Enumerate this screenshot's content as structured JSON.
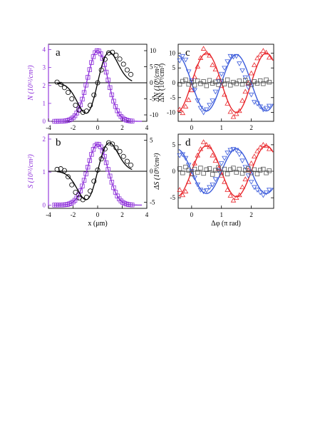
{
  "colors": {
    "purple": "#8B2BD9",
    "black": "#000000",
    "red": "#E8262B",
    "blue": "#3B5BDB",
    "gray": "#555555"
  },
  "chart_data": [
    {
      "panel": "a",
      "type": "scatter",
      "panel_label": "a",
      "xlim": [
        -4,
        4
      ],
      "x_ticks": [
        "-4",
        "-2",
        "0",
        "2",
        "4"
      ],
      "ylim_left": [
        0,
        4.3
      ],
      "y_ticks_left": [
        "0",
        "1",
        "2",
        "3",
        "4"
      ],
      "ylabel_left": "N (10¹²/cm²)",
      "ylim_right": [
        -12,
        12
      ],
      "y_ticks_right": [
        "-10",
        "-5",
        "0",
        "5",
        "10"
      ],
      "ylabel_right": "ΔN (10⁹/cm²)",
      "series": [
        {
          "axis": "left",
          "color": "purple",
          "marker": "square-line",
          "gauss": {
            "amp": 3.95,
            "center": 0.0,
            "sigma": 0.82
          }
        },
        {
          "axis": "right",
          "color": "black",
          "marker": "circle-line",
          "deriv": {
            "amp": 9.5,
            "center": 0.0,
            "sigma": 0.95
          },
          "points": [
            [
              -3.3,
              0.2
            ],
            [
              -3.0,
              -0.5
            ],
            [
              -2.7,
              -1.5
            ],
            [
              -2.4,
              -3.0
            ],
            [
              -2.1,
              -5.0
            ],
            [
              -1.8,
              -7.0
            ],
            [
              -1.5,
              -8.5
            ],
            [
              -1.2,
              -9.2
            ],
            [
              -0.9,
              -8.8
            ],
            [
              -0.6,
              -7.0
            ],
            [
              -0.3,
              -3.8
            ],
            [
              0.0,
              0.0
            ],
            [
              0.3,
              4.0
            ],
            [
              0.6,
              7.3
            ],
            [
              0.9,
              9.3
            ],
            [
              1.2,
              9.5
            ],
            [
              1.5,
              8.6
            ],
            [
              1.8,
              7.4
            ],
            [
              2.1,
              5.8
            ],
            [
              2.4,
              4.0
            ],
            [
              2.7,
              2.6
            ]
          ]
        }
      ]
    },
    {
      "panel": "b",
      "type": "scatter",
      "panel_label": "b",
      "xlabel": "x (μm)",
      "xlim": [
        -4,
        4
      ],
      "x_ticks": [
        "-4",
        "-2",
        "0",
        "2",
        "4"
      ],
      "ylim_left": [
        -0.1,
        2.15
      ],
      "y_ticks_left": [
        "0",
        "1",
        "2"
      ],
      "ylabel_left": "S (10¹²/cm²)",
      "ylim_right": [
        -6,
        6
      ],
      "y_ticks_right": [
        "-5",
        "0",
        "5"
      ],
      "series": [
        {
          "axis": "left",
          "color": "purple",
          "marker": "square-line",
          "gauss": {
            "amp": 1.85,
            "center": 0.0,
            "sigma": 0.82
          }
        },
        {
          "axis": "right",
          "color": "black",
          "marker": "circle-line",
          "deriv": {
            "amp": 4.6,
            "center": 0.0,
            "sigma": 0.95
          },
          "points": [
            [
              -3.3,
              0.3
            ],
            [
              -3.0,
              0.4
            ],
            [
              -2.7,
              0.1
            ],
            [
              -2.4,
              -0.9
            ],
            [
              -2.1,
              -2.2
            ],
            [
              -1.8,
              -3.4
            ],
            [
              -1.5,
              -4.3
            ],
            [
              -1.2,
              -4.6
            ],
            [
              -0.9,
              -4.2
            ],
            [
              -0.6,
              -3.2
            ],
            [
              -0.3,
              -1.6
            ],
            [
              0.0,
              0.2
            ],
            [
              0.3,
              2.0
            ],
            [
              0.6,
              3.6
            ],
            [
              0.9,
              4.6
            ],
            [
              1.2,
              4.4
            ],
            [
              1.5,
              3.8
            ],
            [
              1.8,
              3.2
            ],
            [
              2.1,
              2.4
            ],
            [
              2.4,
              1.6
            ],
            [
              2.7,
              1.0
            ]
          ]
        }
      ]
    },
    {
      "panel": "c",
      "type": "scatter",
      "panel_label": "c",
      "xlim": [
        -0.45,
        2.75
      ],
      "x_ticks": [
        "0",
        "1",
        "2"
      ],
      "ylim": [
        -13,
        13
      ],
      "y_ticks": [
        "-10",
        "-5",
        "0",
        "5",
        "10"
      ],
      "ylabel": "ΔN (10⁹/cm²)",
      "series": [
        {
          "color": "red",
          "marker": "triangle-up",
          "amp": 10.0,
          "phase_shift": 0.0,
          "points": [
            [
              -0.4,
              -9.0
            ],
            [
              -0.3,
              -10.2
            ],
            [
              -0.2,
              -8.0
            ],
            [
              -0.1,
              -5.8
            ],
            [
              0.0,
              -2.5
            ],
            [
              0.1,
              2.0
            ],
            [
              0.2,
              5.5
            ],
            [
              0.3,
              8.4
            ],
            [
              0.4,
              11.5
            ],
            [
              0.5,
              10.0
            ],
            [
              0.6,
              9.2
            ],
            [
              0.7,
              6.0
            ],
            [
              0.8,
              4.5
            ],
            [
              0.9,
              1.8
            ],
            [
              1.0,
              -1.0
            ],
            [
              1.1,
              -4.0
            ],
            [
              1.2,
              -7.0
            ],
            [
              1.3,
              -9.8
            ],
            [
              1.4,
              -11.5
            ],
            [
              1.5,
              -10.5
            ],
            [
              1.6,
              -9.5
            ],
            [
              1.7,
              -6.0
            ],
            [
              1.8,
              -3.0
            ],
            [
              1.9,
              -0.2
            ],
            [
              2.0,
              3.2
            ],
            [
              2.1,
              6.0
            ],
            [
              2.2,
              8.3
            ],
            [
              2.3,
              9.5
            ],
            [
              2.4,
              10.8
            ],
            [
              2.5,
              10.2
            ],
            [
              2.6,
              8.5
            ]
          ]
        },
        {
          "color": "blue",
          "marker": "triangle-down",
          "amp": 9.5,
          "phase_shift": 1.0,
          "points": [
            [
              -0.4,
              7.5
            ],
            [
              -0.3,
              9.0
            ],
            [
              -0.2,
              7.8
            ],
            [
              -0.1,
              3.8
            ],
            [
              0.0,
              0.8
            ],
            [
              0.1,
              -2.5
            ],
            [
              0.2,
              -6.0
            ],
            [
              0.3,
              -8.5
            ],
            [
              0.4,
              -10.0
            ],
            [
              0.5,
              -9.0
            ],
            [
              0.6,
              -7.5
            ],
            [
              0.7,
              -6.0
            ],
            [
              0.8,
              -3.0
            ],
            [
              0.9,
              0.5
            ],
            [
              1.0,
              3.0
            ],
            [
              1.1,
              5.0
            ],
            [
              1.2,
              7.2
            ],
            [
              1.3,
              9.0
            ],
            [
              1.4,
              8.8
            ],
            [
              1.5,
              9.0
            ],
            [
              1.6,
              6.5
            ],
            [
              1.7,
              4.2
            ],
            [
              1.8,
              1.8
            ],
            [
              1.9,
              -1.5
            ],
            [
              2.0,
              -4.0
            ],
            [
              2.1,
              -6.5
            ],
            [
              2.2,
              -7.0
            ],
            [
              2.3,
              -8.0
            ],
            [
              2.4,
              -9.0
            ],
            [
              2.5,
              -8.5
            ],
            [
              2.6,
              -7.8
            ]
          ]
        },
        {
          "color": "gray",
          "marker": "square-open",
          "amp": 0.0,
          "phase_shift": 0.0,
          "points": [
            [
              -0.4,
              -0.5
            ],
            [
              -0.3,
              0.5
            ],
            [
              -0.2,
              1.0
            ],
            [
              -0.1,
              -0.5
            ],
            [
              0.0,
              0.2
            ],
            [
              0.1,
              -0.8
            ],
            [
              0.2,
              0.6
            ],
            [
              0.3,
              -0.3
            ],
            [
              0.4,
              0.4
            ],
            [
              0.5,
              -1.0
            ],
            [
              0.6,
              0.8
            ],
            [
              0.7,
              -0.2
            ],
            [
              0.8,
              0.3
            ],
            [
              0.9,
              -0.6
            ],
            [
              1.0,
              0.5
            ],
            [
              1.1,
              -0.4
            ],
            [
              1.2,
              1.0
            ],
            [
              1.3,
              -0.8
            ],
            [
              1.4,
              0.2
            ],
            [
              1.5,
              -0.3
            ],
            [
              1.6,
              0.6
            ],
            [
              1.7,
              -0.5
            ],
            [
              1.8,
              0.9
            ],
            [
              1.9,
              0.1
            ],
            [
              2.0,
              -0.7
            ],
            [
              2.1,
              0.4
            ],
            [
              2.2,
              -0.2
            ],
            [
              2.3,
              0.7
            ],
            [
              2.4,
              -0.3
            ],
            [
              2.5,
              1.0
            ],
            [
              2.6,
              0.2
            ]
          ]
        }
      ]
    },
    {
      "panel": "d",
      "type": "scatter",
      "panel_label": "d",
      "xlabel": "Δφ (π rad)",
      "xlim": [
        -0.45,
        2.75
      ],
      "x_ticks": [
        "0",
        "1",
        "2"
      ],
      "ylim": [
        -7,
        7
      ],
      "y_ticks": [
        "-5",
        "0",
        "5"
      ],
      "ylabel": "ΔS (10⁹/cm²)",
      "series": [
        {
          "color": "red",
          "marker": "triangle-up",
          "amp": 4.8,
          "phase_shift": 0.0,
          "points": [
            [
              -0.4,
              -3.5
            ],
            [
              -0.3,
              -4.5
            ],
            [
              -0.2,
              -3.8
            ],
            [
              -0.1,
              -2.0
            ],
            [
              0.0,
              -0.5
            ],
            [
              0.1,
              1.5
            ],
            [
              0.2,
              3.0
            ],
            [
              0.3,
              4.2
            ],
            [
              0.4,
              5.5
            ],
            [
              0.5,
              5.0
            ],
            [
              0.6,
              4.6
            ],
            [
              0.7,
              3.0
            ],
            [
              0.8,
              2.0
            ],
            [
              0.9,
              0.5
            ],
            [
              1.0,
              -0.8
            ],
            [
              1.1,
              -2.0
            ],
            [
              1.2,
              -3.5
            ],
            [
              1.3,
              -4.6
            ],
            [
              1.4,
              -5.5
            ],
            [
              1.5,
              -5.0
            ],
            [
              1.6,
              -4.5
            ],
            [
              1.7,
              -3.0
            ],
            [
              1.8,
              -1.5
            ],
            [
              1.9,
              0.2
            ],
            [
              2.0,
              1.5
            ],
            [
              2.1,
              2.8
            ],
            [
              2.2,
              3.8
            ],
            [
              2.3,
              4.5
            ],
            [
              2.4,
              5.0
            ],
            [
              2.5,
              4.8
            ],
            [
              2.6,
              4.2
            ]
          ]
        },
        {
          "color": "blue",
          "marker": "triangle-down",
          "amp": 4.2,
          "phase_shift": 1.0,
          "points": [
            [
              -0.4,
              3.0
            ],
            [
              -0.3,
              3.2
            ],
            [
              -0.2,
              2.5
            ],
            [
              -0.1,
              1.2
            ],
            [
              0.0,
              0.0
            ],
            [
              0.1,
              -1.2
            ],
            [
              0.2,
              -2.5
            ],
            [
              0.3,
              -3.5
            ],
            [
              0.4,
              -3.8
            ],
            [
              0.5,
              -3.6
            ],
            [
              0.6,
              -3.0
            ],
            [
              0.7,
              -2.5
            ],
            [
              0.8,
              -1.5
            ],
            [
              0.9,
              0.2
            ],
            [
              1.0,
              1.5
            ],
            [
              1.1,
              2.5
            ],
            [
              1.2,
              3.5
            ],
            [
              1.3,
              4.0
            ],
            [
              1.4,
              4.2
            ],
            [
              1.5,
              4.0
            ],
            [
              1.6,
              3.2
            ],
            [
              1.7,
              2.0
            ],
            [
              1.8,
              0.8
            ],
            [
              1.9,
              -0.8
            ],
            [
              2.0,
              -2.0
            ],
            [
              2.1,
              -3.0
            ],
            [
              2.2,
              -3.5
            ],
            [
              2.3,
              -4.0
            ],
            [
              2.4,
              -4.5
            ],
            [
              2.5,
              -4.0
            ],
            [
              2.6,
              -3.5
            ]
          ]
        },
        {
          "color": "gray",
          "marker": "square-open",
          "amp": 0.0,
          "phase_shift": 0.0,
          "points": [
            [
              -0.4,
              0.5
            ],
            [
              -0.3,
              -0.3
            ],
            [
              -0.2,
              0.8
            ],
            [
              -0.1,
              0.2
            ],
            [
              0.0,
              -0.5
            ],
            [
              0.1,
              0.4
            ],
            [
              0.2,
              -0.2
            ],
            [
              0.3,
              0.6
            ],
            [
              0.4,
              -0.4
            ],
            [
              0.5,
              0.3
            ],
            [
              0.6,
              0.5
            ],
            [
              0.7,
              -0.6
            ],
            [
              0.8,
              0.2
            ],
            [
              0.9,
              0.7
            ],
            [
              1.0,
              -0.3
            ],
            [
              1.1,
              0.4
            ],
            [
              1.2,
              -0.5
            ],
            [
              1.3,
              0.3
            ],
            [
              1.4,
              0.6
            ],
            [
              1.5,
              -0.2
            ],
            [
              1.6,
              0.4
            ],
            [
              1.7,
              -0.4
            ],
            [
              1.8,
              0.2
            ],
            [
              1.9,
              0.5
            ],
            [
              2.0,
              -0.3
            ],
            [
              2.1,
              0.3
            ],
            [
              2.2,
              -0.5
            ],
            [
              2.3,
              0.2
            ],
            [
              2.4,
              0.4
            ],
            [
              2.5,
              -0.3
            ],
            [
              2.6,
              0.1
            ]
          ]
        }
      ]
    }
  ]
}
